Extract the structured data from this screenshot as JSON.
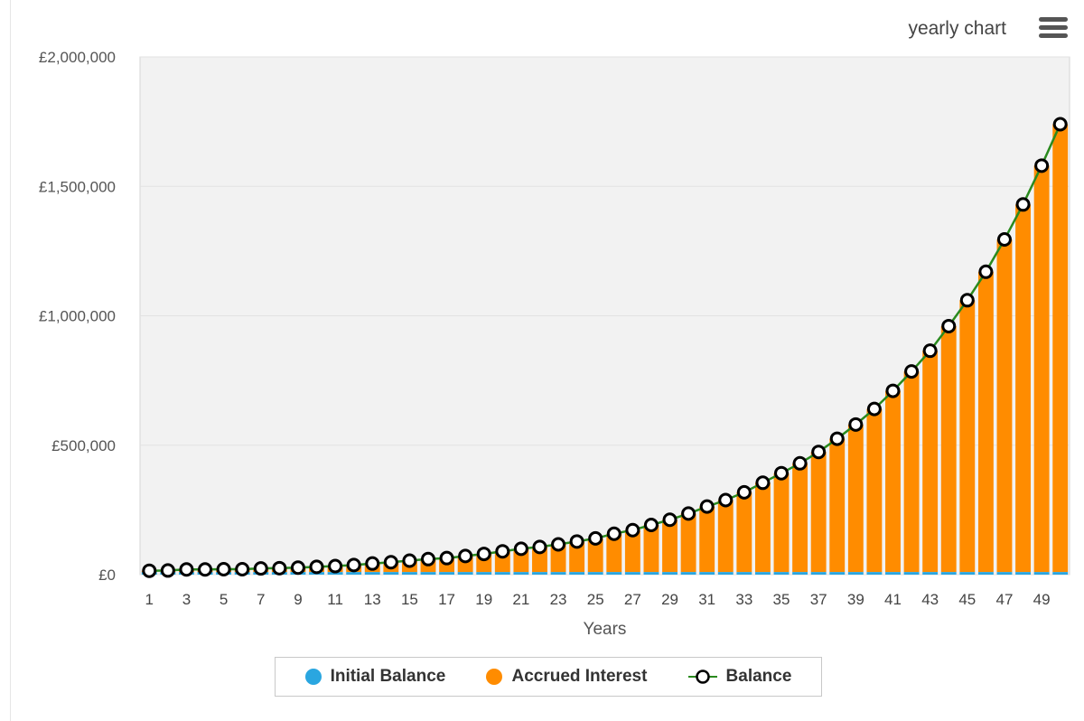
{
  "header": {
    "chart_menu_title": "yearly chart"
  },
  "legend": {
    "items": [
      {
        "label": "Initial Balance",
        "color": "#2aa6e0",
        "icon": "circle-marker"
      },
      {
        "label": "Accrued Interest",
        "color": "#ff8c00",
        "icon": "circle-marker"
      },
      {
        "label": "Balance",
        "color": "#2a8a1e",
        "icon": "line-with-circle-marker"
      }
    ]
  },
  "chart_data": {
    "type": "bar",
    "title": "",
    "xlabel": "Years",
    "ylabel": "",
    "ylim": [
      0,
      2000000
    ],
    "y_ticks": [
      "£0",
      "£500,000",
      "£1,000,000",
      "£1,500,000",
      "£2,000,000"
    ],
    "y_tick_values": [
      0,
      500000,
      1000000,
      1500000,
      2000000
    ],
    "x_tick_labels": [
      "1",
      "3",
      "5",
      "7",
      "9",
      "11",
      "13",
      "15",
      "17",
      "19",
      "21",
      "23",
      "25",
      "27",
      "29",
      "31",
      "33",
      "35",
      "37",
      "39",
      "41",
      "43",
      "45",
      "47",
      "49"
    ],
    "categories": [
      1,
      2,
      3,
      4,
      5,
      6,
      7,
      8,
      9,
      10,
      11,
      12,
      13,
      14,
      15,
      16,
      17,
      18,
      19,
      20,
      21,
      22,
      23,
      24,
      25,
      26,
      27,
      28,
      29,
      30,
      31,
      32,
      33,
      34,
      35,
      36,
      37,
      38,
      39,
      40,
      41,
      42,
      43,
      44,
      45,
      46,
      47,
      48,
      49,
      50
    ],
    "grid": true,
    "stacked": true,
    "series": [
      {
        "name": "Initial Balance",
        "type": "bar",
        "color": "#2aa6e0",
        "values": [
          10000,
          10000,
          10000,
          10000,
          10000,
          10000,
          10000,
          10000,
          10000,
          10000,
          10000,
          10000,
          10000,
          10000,
          10000,
          10000,
          10000,
          10000,
          10000,
          10000,
          10000,
          10000,
          10000,
          10000,
          10000,
          10000,
          10000,
          10000,
          10000,
          10000,
          10000,
          10000,
          10000,
          10000,
          10000,
          10000,
          10000,
          10000,
          10000,
          10000,
          10000,
          10000,
          10000,
          10000,
          10000,
          10000,
          10000,
          10000,
          10000,
          10000
        ]
      },
      {
        "name": "Accrued Interest",
        "type": "bar",
        "color": "#ff8c00",
        "values": [
          5000,
          6000,
          10000,
          10000,
          11000,
          11000,
          14000,
          15000,
          17000,
          20000,
          23000,
          27000,
          33000,
          38000,
          44000,
          50000,
          54000,
          62000,
          70000,
          80000,
          90000,
          97000,
          107000,
          118000,
          130000,
          148000,
          162000,
          182000,
          202000,
          226000,
          253000,
          278000,
          308000,
          345000,
          382000,
          420000,
          464000,
          515000,
          570000,
          630000,
          700000,
          775000,
          855000,
          950000,
          1050000,
          1160000,
          1285000,
          1420000,
          1570000,
          1730000
        ]
      },
      {
        "name": "Balance",
        "type": "line",
        "color": "#2a8a1e",
        "values": [
          15000,
          16000,
          20000,
          20000,
          21000,
          21000,
          24000,
          25000,
          27000,
          30000,
          33000,
          37000,
          43000,
          48000,
          54000,
          60000,
          64000,
          72000,
          80000,
          90000,
          100000,
          107000,
          117000,
          128000,
          140000,
          158000,
          172000,
          192000,
          212000,
          236000,
          263000,
          288000,
          318000,
          355000,
          392000,
          430000,
          474000,
          525000,
          580000,
          640000,
          710000,
          785000,
          865000,
          960000,
          1060000,
          1170000,
          1295000,
          1430000,
          1580000,
          1740000
        ]
      }
    ]
  }
}
